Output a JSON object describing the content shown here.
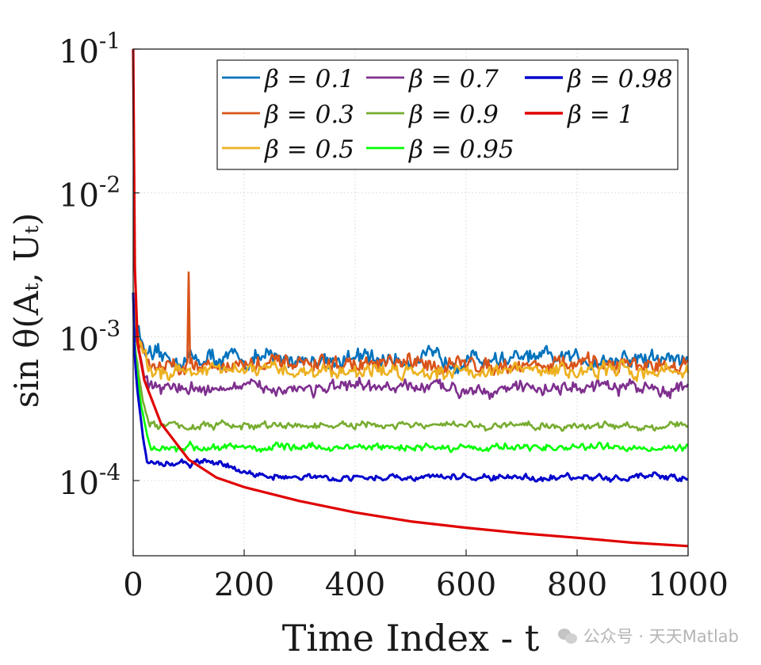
{
  "chart_data": {
    "type": "line",
    "xlabel": "Time Index - t",
    "ylabel": "sin θ(Aₜ, Uₜ)",
    "yscale": "log",
    "xlim": [
      0,
      1000
    ],
    "ylim": [
      3e-05,
      0.1
    ],
    "xticks": [
      "0",
      "200",
      "400",
      "600",
      "800",
      "1000"
    ],
    "yticks": [
      {
        "base": "10",
        "exp": "-1"
      },
      {
        "base": "10",
        "exp": "-2"
      },
      {
        "base": "10",
        "exp": "-3"
      },
      {
        "base": "10",
        "exp": "-4"
      }
    ],
    "grid": true,
    "legend_position": "top-right",
    "series": [
      {
        "name": "β = 0.1",
        "color": "#0072BD",
        "level": 0.0007,
        "noise": 0.12
      },
      {
        "name": "β = 0.3",
        "color": "#D95319",
        "level": 0.00064,
        "noise": 0.11,
        "spike": {
          "x": 100,
          "y": 0.0028
        }
      },
      {
        "name": "β = 0.5",
        "color": "#EDB120",
        "level": 0.00058,
        "noise": 0.1
      },
      {
        "name": "β = 0.7",
        "color": "#7E2F8E",
        "level": 0.00044,
        "noise": 0.09
      },
      {
        "name": "β = 0.9",
        "color": "#77AC30",
        "level": 0.00024,
        "noise": 0.05
      },
      {
        "name": "β = 0.95",
        "color": "#00FF00",
        "level": 0.00017,
        "noise": 0.05
      },
      {
        "name": "β = 0.98",
        "color": "#0000CC",
        "level": 0.000105,
        "noise": 0.04,
        "hump": {
          "x": 130,
          "y": 0.000135
        }
      },
      {
        "name": "β = 1",
        "color": "#E00000",
        "points": [
          [
            0,
            0.1
          ],
          [
            3,
            0.003
          ],
          [
            8,
            0.0009
          ],
          [
            20,
            0.0005
          ],
          [
            50,
            0.00025
          ],
          [
            100,
            0.00014
          ],
          [
            150,
            0.000105
          ],
          [
            200,
            9e-05
          ],
          [
            300,
            7.2e-05
          ],
          [
            400,
            6e-05
          ],
          [
            500,
            5.2e-05
          ],
          [
            600,
            4.7e-05
          ],
          [
            700,
            4.3e-05
          ],
          [
            800,
            4e-05
          ],
          [
            900,
            3.7e-05
          ],
          [
            1000,
            3.5e-05
          ]
        ]
      }
    ],
    "legend_rows": [
      [
        0,
        3,
        6
      ],
      [
        1,
        4,
        7
      ],
      [
        2,
        5
      ]
    ]
  },
  "watermark": {
    "text": "公众号 · 天天Matlab"
  }
}
